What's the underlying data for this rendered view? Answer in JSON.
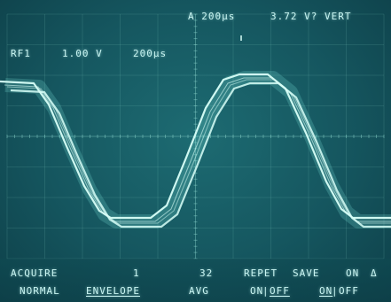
{
  "header": {
    "timebase_readout": "A 200µs",
    "vert_readout": "3.72 V? VERT",
    "channel_readout": "RF1",
    "channel_scale": "1.00 V",
    "channel_time": "200µs"
  },
  "menu": {
    "top_row": [
      "ACQUIRE",
      "1",
      "32",
      "REPET",
      "SAVE",
      "ON",
      "Δ"
    ],
    "bottom_row": {
      "normal": "NORMAL",
      "envelope": "ENVELOPE",
      "avg": "AVG",
      "repet_on": "ON",
      "repet_sep": "|",
      "repet_off": "OFF",
      "save_on": "ON",
      "save_sep": "|",
      "save_off": "OFF"
    }
  },
  "colors": {
    "trace": "#d8fff8",
    "trace_glow": "#7fe8de",
    "grid": "#8fd6cf",
    "screen_bg": "#15565f"
  }
}
